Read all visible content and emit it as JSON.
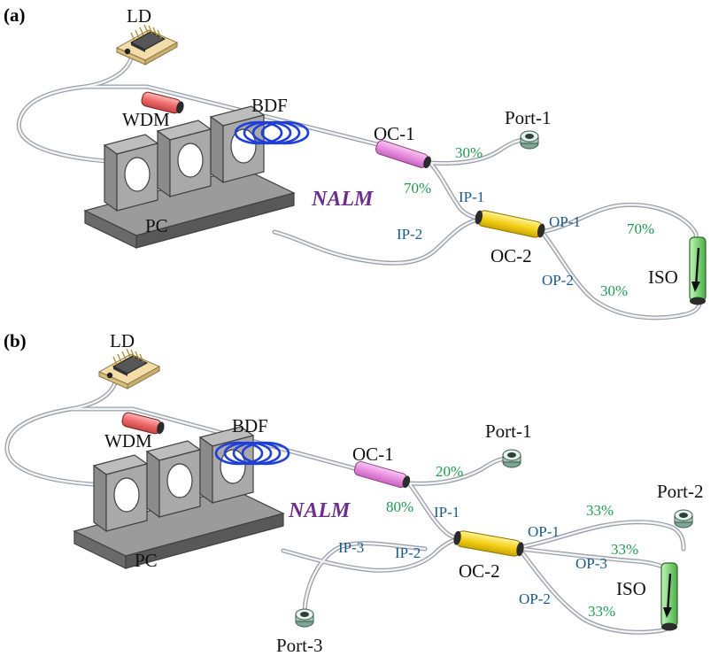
{
  "panels": [
    {
      "id": "a",
      "label": "(a)",
      "components": {
        "ld": "LD",
        "wdm": "WDM",
        "bdf": "BDF",
        "pc": "PC",
        "oc1": "OC-1",
        "oc2": "OC-2",
        "iso": "ISO",
        "nalm": "NALM"
      },
      "outputs": {
        "port1": "Port-1"
      },
      "ports": {
        "ip1": "IP-1",
        "ip2": "IP-2",
        "op1": "OP-1",
        "op2": "OP-2"
      },
      "ratios": {
        "oc1_out": "30%",
        "oc1_loop": "70%",
        "oc2_op1": "70%",
        "oc2_op2": "30%"
      }
    },
    {
      "id": "b",
      "label": "(b)",
      "components": {
        "ld": "LD",
        "wdm": "WDM",
        "bdf": "BDF",
        "pc": "PC",
        "oc1": "OC-1",
        "oc2": "OC-2",
        "iso": "ISO",
        "nalm": "NALM"
      },
      "outputs": {
        "port1": "Port-1",
        "port2": "Port-2",
        "port3": "Port-3"
      },
      "ports": {
        "ip1": "IP-1",
        "ip2": "IP-2",
        "ip3": "IP-3",
        "op1": "OP-1",
        "op2": "OP-2",
        "op3": "OP-3"
      },
      "ratios": {
        "oc1_out": "20%",
        "oc1_loop": "80%",
        "oc2_op1": "33%",
        "oc2_op3": "33%",
        "oc2_op2": "33%"
      }
    }
  ]
}
